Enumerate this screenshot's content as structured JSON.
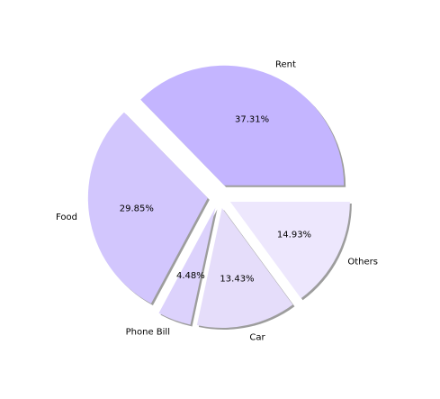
{
  "chart_data": {
    "type": "pie",
    "title": "",
    "categories": [
      "Rent",
      "Food",
      "Phone Bill",
      "Car",
      "Others"
    ],
    "values": [
      37.31,
      29.85,
      4.48,
      13.43,
      14.93
    ],
    "value_labels": [
      "37.31%",
      "29.85%",
      "4.48%",
      "13.43%",
      "14.93%"
    ],
    "colors": [
      "#c4b5ff",
      "#d2c6fd",
      "#dcd2fc",
      "#e5ddfa",
      "#ede7fd"
    ],
    "explode": [
      0.1,
      0.1,
      0.1,
      0.1,
      0.1
    ],
    "start_angle_deg": 0,
    "direction": "counterclockwise",
    "shadow": true,
    "legend": "none"
  }
}
